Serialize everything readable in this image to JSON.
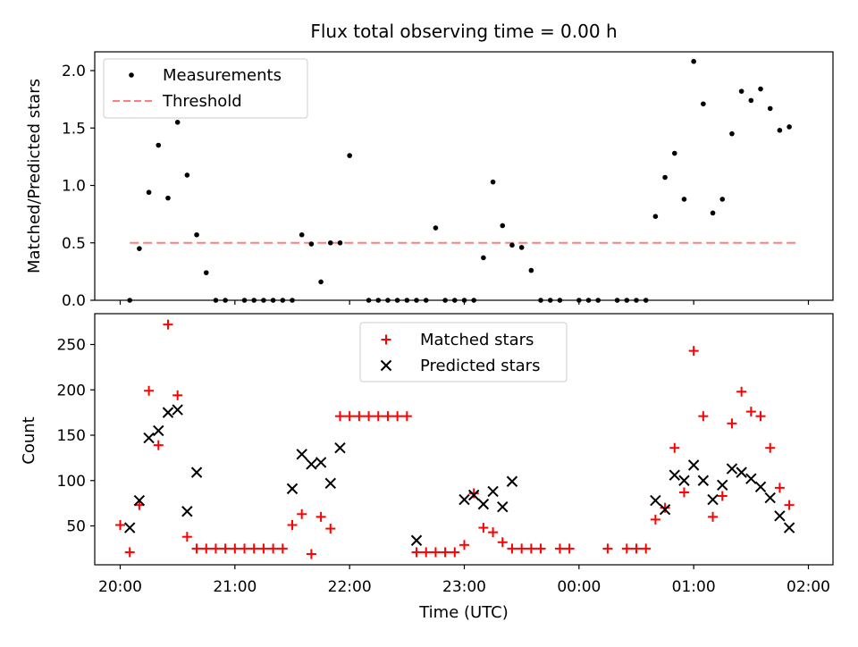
{
  "figure": {
    "title": "Flux total observing time = 0.00 h"
  },
  "chart_data": [
    {
      "type": "scatter",
      "panel": "top",
      "ylabel": "Matched/Predicted stars",
      "xlabel": "",
      "ylim": [
        0,
        2.2
      ],
      "yticks": [
        0.0,
        0.5,
        1.0,
        1.5,
        2.0
      ],
      "ytick_labels": [
        "0.0",
        "0.5",
        "1.0",
        "1.5",
        "2.0"
      ],
      "legend_position": "upper left",
      "legend": [
        {
          "label": "Measurements",
          "marker": "dot",
          "color": "#000000"
        },
        {
          "label": "Threshold",
          "marker": "dashed-line",
          "color": "#ff7f7f"
        }
      ],
      "threshold": {
        "value": 0.5,
        "x_start": "20:05",
        "x_end": "01:54",
        "color": "#ff7f7f"
      },
      "points": {
        "x": [
          "20:05",
          "20:10",
          "20:15",
          "20:20",
          "20:25",
          "20:30",
          "20:35",
          "20:40",
          "20:45",
          "20:50",
          "20:55",
          "21:00",
          "21:05",
          "21:10",
          "21:15",
          "21:20",
          "21:25",
          "21:30",
          "21:35",
          "21:40",
          "21:45",
          "21:50",
          "21:55",
          "22:00",
          "22:05",
          "22:10",
          "22:15",
          "22:20",
          "22:25",
          "22:30",
          "22:35",
          "22:40",
          "22:45",
          "22:50",
          "22:55",
          "23:00",
          "23:05",
          "23:10",
          "23:15",
          "23:20",
          "23:25",
          "23:30",
          "23:35",
          "23:40",
          "23:45",
          "23:50",
          "23:55",
          "00:00",
          "00:05",
          "00:10",
          "00:15",
          "00:20",
          "00:25",
          "00:30",
          "00:35",
          "00:40",
          "00:45",
          "00:50",
          "00:55",
          "01:00",
          "01:05",
          "01:10",
          "01:15",
          "01:20",
          "01:25",
          "01:30",
          "01:35",
          "01:40",
          "01:45",
          "01:50",
          "01:55"
        ],
        "y": [
          0.0,
          0.45,
          0.94,
          1.35,
          0.89,
          1.55,
          1.09,
          0.57,
          0.24,
          0.0,
          0.0,
          0.0,
          0.0,
          0.0,
          0.0,
          0.0,
          0.0,
          0.0,
          0.57,
          0.49,
          0.16,
          0.5,
          0.5,
          1.26,
          0.0,
          0.0,
          0.0,
          0.0,
          0.0,
          0.0,
          0.0,
          0.0,
          0.63,
          0.0,
          0.0,
          0.0,
          0.0,
          0.37,
          1.03,
          0.65,
          0.48,
          0.46,
          0.26,
          0.0,
          0.0,
          0.0,
          0.0,
          0.0,
          0.0,
          0.0,
          0.0,
          0.0,
          0.0,
          0.0,
          0.0,
          0.73,
          1.07,
          1.28,
          0.88,
          2.08,
          1.71,
          0.76,
          0.88,
          1.45,
          1.82,
          1.74,
          1.84,
          1.67,
          1.48,
          1.51,
          null
        ],
        "mask": [
          1,
          1,
          1,
          1,
          1,
          1,
          1,
          1,
          1,
          1,
          1,
          0,
          1,
          1,
          1,
          1,
          1,
          1,
          1,
          1,
          1,
          1,
          1,
          1,
          0,
          1,
          1,
          1,
          1,
          1,
          1,
          1,
          1,
          1,
          1,
          1,
          1,
          1,
          1,
          1,
          1,
          1,
          1,
          1,
          1,
          1,
          0,
          1,
          1,
          1,
          0,
          1,
          1,
          1,
          1,
          1,
          1,
          1,
          1,
          1,
          1,
          1,
          1,
          1,
          1,
          1,
          1,
          1,
          1,
          1,
          0
        ]
      }
    },
    {
      "type": "scatter",
      "panel": "bottom",
      "ylabel": "Count",
      "xlabel": "Time (UTC)",
      "ylim": [
        5,
        295
      ],
      "yticks": [
        50,
        100,
        150,
        200,
        250
      ],
      "ytick_labels": [
        "50",
        "100",
        "150",
        "200",
        "250"
      ],
      "xticks": [
        "20:00",
        "21:00",
        "22:00",
        "23:00",
        "00:00",
        "01:00",
        "02:00"
      ],
      "legend_position": "upper center",
      "series": [
        {
          "name": "Matched stars",
          "marker": "plus",
          "color": "#ff0000",
          "points": [
            [
              "20:00",
              51
            ],
            [
              "20:05",
              21
            ],
            [
              "20:10",
              73
            ],
            [
              "20:15",
              199
            ],
            [
              "20:20",
              139
            ],
            [
              "20:25",
              272
            ],
            [
              "20:30",
              194
            ],
            [
              "20:35",
              38
            ],
            [
              "20:40",
              25
            ],
            [
              "20:45",
              25
            ],
            [
              "20:50",
              25
            ],
            [
              "20:55",
              25
            ],
            [
              "21:00",
              25
            ],
            [
              "21:05",
              25
            ],
            [
              "21:10",
              25
            ],
            [
              "21:15",
              25
            ],
            [
              "21:20",
              25
            ],
            [
              "21:25",
              25
            ],
            [
              "21:30",
              51
            ],
            [
              "21:35",
              63
            ],
            [
              "21:40",
              19
            ],
            [
              "21:45",
              60
            ],
            [
              "21:50",
              47
            ],
            [
              "21:55",
              171
            ],
            [
              "22:00",
              171
            ],
            [
              "22:05",
              171
            ],
            [
              "22:10",
              171
            ],
            [
              "22:15",
              171
            ],
            [
              "22:20",
              171
            ],
            [
              "22:25",
              171
            ],
            [
              "22:30",
              171
            ],
            [
              "22:35",
              21
            ],
            [
              "22:40",
              21
            ],
            [
              "22:45",
              21
            ],
            [
              "22:50",
              21
            ],
            [
              "22:55",
              21
            ],
            [
              "23:00",
              29
            ],
            [
              "23:05",
              86
            ],
            [
              "23:10",
              48
            ],
            [
              "23:15",
              43
            ],
            [
              "23:20",
              32
            ],
            [
              "23:25",
              25
            ],
            [
              "23:30",
              25
            ],
            [
              "23:35",
              25
            ],
            [
              "23:40",
              25
            ],
            [
              "23:50",
              25
            ],
            [
              "23:55",
              25
            ],
            [
              "00:15",
              25
            ],
            [
              "00:25",
              25
            ],
            [
              "00:30",
              25
            ],
            [
              "00:35",
              25
            ],
            [
              "00:40",
              57
            ],
            [
              "00:45",
              70
            ],
            [
              "00:50",
              136
            ],
            [
              "00:55",
              87
            ],
            [
              "01:00",
              243
            ],
            [
              "01:05",
              171
            ],
            [
              "01:10",
              60
            ],
            [
              "01:15",
              83
            ],
            [
              "01:20",
              163
            ],
            [
              "01:25",
              198
            ],
            [
              "01:30",
              176
            ],
            [
              "01:35",
              171
            ],
            [
              "01:40",
              136
            ],
            [
              "01:45",
              92
            ],
            [
              "01:50",
              73
            ]
          ]
        },
        {
          "name": "Predicted stars",
          "marker": "x",
          "color": "#000000",
          "points": [
            [
              "20:05",
              48
            ],
            [
              "20:10",
              78
            ],
            [
              "20:15",
              147
            ],
            [
              "20:20",
              155
            ],
            [
              "20:25",
              175
            ],
            [
              "20:30",
              178
            ],
            [
              "20:35",
              66
            ],
            [
              "20:40",
              109
            ],
            [
              "21:30",
              91
            ],
            [
              "21:35",
              129
            ],
            [
              "21:40",
              118
            ],
            [
              "21:45",
              120
            ],
            [
              "21:50",
              97
            ],
            [
              "21:55",
              136
            ],
            [
              "22:35",
              34
            ],
            [
              "23:00",
              79
            ],
            [
              "23:05",
              84
            ],
            [
              "23:10",
              74
            ],
            [
              "23:15",
              88
            ],
            [
              "23:20",
              71
            ],
            [
              "23:25",
              99
            ],
            [
              "00:40",
              78
            ],
            [
              "00:45",
              68
            ],
            [
              "00:50",
              106
            ],
            [
              "00:55",
              100
            ],
            [
              "01:00",
              117
            ],
            [
              "01:05",
              100
            ],
            [
              "01:10",
              79
            ],
            [
              "01:15",
              95
            ],
            [
              "01:20",
              113
            ],
            [
              "01:25",
              109
            ],
            [
              "01:30",
              102
            ],
            [
              "01:35",
              93
            ],
            [
              "01:40",
              81
            ],
            [
              "01:45",
              61
            ],
            [
              "01:50",
              48
            ]
          ]
        }
      ]
    }
  ]
}
